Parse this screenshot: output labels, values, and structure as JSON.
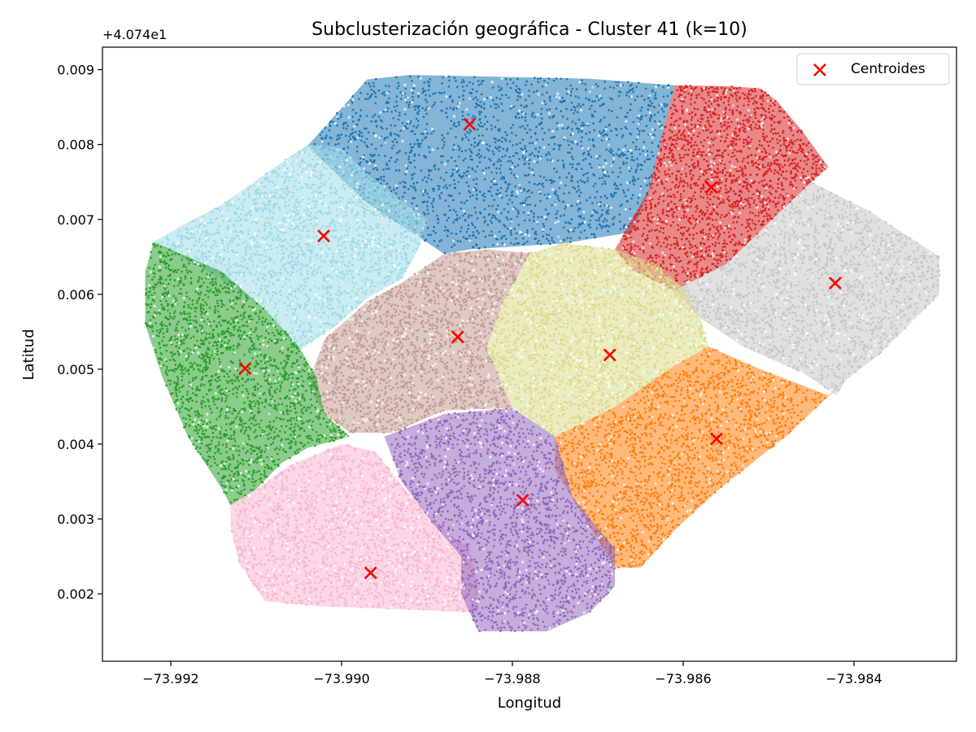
{
  "chart_data": {
    "type": "scatter",
    "title": "Subclusterización geográfica - Cluster 41 (k=10)",
    "xlabel": "Longitud",
    "ylabel": "Latitud",
    "y_offset_label": "+4.074e1",
    "y_offset": 40.74,
    "xlim": [
      -73.9928,
      -73.9828
    ],
    "ylim": [
      0.0011,
      0.0093
    ],
    "x_ticks": [
      -73.992,
      -73.99,
      -73.988,
      -73.986,
      -73.984
    ],
    "x_tick_labels": [
      "−73.992",
      "−73.990",
      "−73.988",
      "−73.986",
      "−73.984"
    ],
    "y_ticks": [
      0.002,
      0.003,
      0.004,
      0.005,
      0.006,
      0.007,
      0.008,
      0.009
    ],
    "y_tick_labels": [
      "0.002",
      "0.003",
      "0.004",
      "0.005",
      "0.006",
      "0.007",
      "0.008",
      "0.009"
    ],
    "grid": false,
    "legend": {
      "position": "top-right",
      "entries": [
        "Centroides"
      ]
    },
    "centroid_color": "#ff0000",
    "clusters": [
      {
        "color": "#1f77b4",
        "centroid": [
          -73.9885,
          0.00827
        ],
        "polygon": [
          [
            -73.9897,
            0.00887
          ],
          [
            -73.9892,
            0.00893
          ],
          [
            -73.9871,
            0.00888
          ],
          [
            -73.9861,
            0.00879
          ],
          [
            -73.9864,
            0.00738
          ],
          [
            -73.9866,
            0.00683
          ],
          [
            -73.9874,
            0.00668
          ],
          [
            -73.9885,
            0.0066
          ],
          [
            -73.9888,
            0.00654
          ],
          [
            -73.9897,
            0.00722
          ],
          [
            -73.9904,
            0.00798
          ]
        ]
      },
      {
        "color": "#d62728",
        "centroid": [
          -73.98567,
          0.00743
        ],
        "polygon": [
          [
            -73.9861,
            0.00879
          ],
          [
            -73.9855,
            0.00878
          ],
          [
            -73.9851,
            0.00875
          ],
          [
            -73.9849,
            0.00858
          ],
          [
            -73.9846,
            0.00817
          ],
          [
            -73.9843,
            0.0077
          ],
          [
            -73.9845,
            0.0075
          ],
          [
            -73.9855,
            0.0064
          ],
          [
            -73.9861,
            0.00605
          ],
          [
            -73.9866,
            0.00633
          ],
          [
            -73.9868,
            0.0066
          ],
          [
            -73.9864,
            0.0074
          ]
        ]
      },
      {
        "color": "#c7c7c7",
        "centroid": [
          -73.98422,
          0.00615
        ],
        "polygon": [
          [
            -73.9845,
            0.0075
          ],
          [
            -73.9838,
            0.0071
          ],
          [
            -73.983,
            0.0065
          ],
          [
            -73.983,
            0.006
          ],
          [
            -73.9837,
            0.0052
          ],
          [
            -73.9841,
            0.00485
          ],
          [
            -73.9842,
            0.00465
          ],
          [
            -73.9846,
            0.00495
          ],
          [
            -73.9853,
            0.0053
          ],
          [
            -73.9858,
            0.00568
          ],
          [
            -73.9861,
            0.00605
          ],
          [
            -73.9855,
            0.0064
          ]
        ]
      },
      {
        "color": "#ff7f0e",
        "centroid": [
          -73.98561,
          0.00407
        ],
        "polygon": [
          [
            -73.9857,
            0.0053
          ],
          [
            -73.9851,
            0.005
          ],
          [
            -73.9843,
            0.00465
          ],
          [
            -73.9841,
            0.00485
          ],
          [
            -73.9848,
            0.0041
          ],
          [
            -73.9856,
            0.00338
          ],
          [
            -73.9861,
            0.00285
          ],
          [
            -73.9865,
            0.00235
          ],
          [
            -73.9868,
            0.00235
          ],
          [
            -73.9872,
            0.0031
          ],
          [
            -73.9875,
            0.00365
          ],
          [
            -73.9875,
            0.0041
          ],
          [
            -73.9868,
            0.0045
          ],
          [
            -73.9861,
            0.00505
          ]
        ]
      },
      {
        "color": "#dbdb8d",
        "centroid": [
          -73.98686,
          0.00519
        ],
        "polygon": [
          [
            -73.9874,
            0.00668
          ],
          [
            -73.9868,
            0.0066
          ],
          [
            -73.9863,
            0.0064
          ],
          [
            -73.986,
            0.00608
          ],
          [
            -73.9858,
            0.00568
          ],
          [
            -73.9857,
            0.0053
          ],
          [
            -73.9861,
            0.00505
          ],
          [
            -73.9868,
            0.0045
          ],
          [
            -73.9875,
            0.0041
          ],
          [
            -73.988,
            0.00448
          ],
          [
            -73.9883,
            0.0053
          ],
          [
            -73.9881,
            0.0059
          ],
          [
            -73.9878,
            0.00655
          ]
        ]
      },
      {
        "color": "#c49c94",
        "centroid": [
          -73.98864,
          0.00543
        ],
        "polygon": [
          [
            -73.9888,
            0.00654
          ],
          [
            -73.9883,
            0.0066
          ],
          [
            -73.9878,
            0.00655
          ],
          [
            -73.9881,
            0.0059
          ],
          [
            -73.9883,
            0.0053
          ],
          [
            -73.988,
            0.00448
          ],
          [
            -73.9888,
            0.00445
          ],
          [
            -73.9894,
            0.00415
          ],
          [
            -73.9899,
            0.00415
          ],
          [
            -73.9902,
            0.0044
          ],
          [
            -73.9904,
            0.0048
          ],
          [
            -73.9902,
            0.0054
          ],
          [
            -73.9897,
            0.0059
          ],
          [
            -73.9893,
            0.00615
          ]
        ]
      },
      {
        "color": "#9edae5",
        "centroid": [
          -73.99021,
          0.00678
        ],
        "polygon": [
          [
            -73.9904,
            0.008
          ],
          [
            -73.99,
            0.00795
          ],
          [
            -73.9897,
            0.0076
          ],
          [
            -73.9893,
            0.00725
          ],
          [
            -73.989,
            0.007
          ],
          [
            -73.9891,
            0.0066
          ],
          [
            -73.9893,
            0.0062
          ],
          [
            -73.9897,
            0.00595
          ],
          [
            -73.9901,
            0.00555
          ],
          [
            -73.9905,
            0.00525
          ],
          [
            -73.9909,
            0.0058
          ],
          [
            -73.9914,
            0.0062
          ],
          [
            -73.9922,
            0.0067
          ],
          [
            -73.9919,
            0.0069
          ],
          [
            -73.9914,
            0.0072
          ],
          [
            -73.9909,
            0.0076
          ]
        ]
      },
      {
        "color": "#2ca02c",
        "centroid": [
          -73.99113,
          0.00501
        ],
        "polygon": [
          [
            -73.9922,
            0.0067
          ],
          [
            -73.9914,
            0.0063
          ],
          [
            -73.9909,
            0.0058
          ],
          [
            -73.9905,
            0.0053
          ],
          [
            -73.9903,
            0.0049
          ],
          [
            -73.9902,
            0.0044
          ],
          [
            -73.9899,
            0.0041
          ],
          [
            -73.9904,
            0.00395
          ],
          [
            -73.9907,
            0.00375
          ],
          [
            -73.991,
            0.0034
          ],
          [
            -73.9913,
            0.00318
          ],
          [
            -73.9914,
            0.0034
          ],
          [
            -73.9918,
            0.0041
          ],
          [
            -73.9921,
            0.0049
          ],
          [
            -73.9923,
            0.0056
          ],
          [
            -73.9923,
            0.0063
          ]
        ]
      },
      {
        "color": "#f7b6d2",
        "centroid": [
          -73.98966,
          0.00228
        ],
        "polygon": [
          [
            -73.9913,
            0.00318
          ],
          [
            -73.991,
            0.0034
          ],
          [
            -73.9906,
            0.00372
          ],
          [
            -73.99,
            0.004
          ],
          [
            -73.9896,
            0.0039
          ],
          [
            -73.9893,
            0.00345
          ],
          [
            -73.9889,
            0.00295
          ],
          [
            -73.9885,
            0.0026
          ],
          [
            -73.9884,
            0.0021
          ],
          [
            -73.9884,
            0.00175
          ],
          [
            -73.989,
            0.00178
          ],
          [
            -73.9902,
            0.00183
          ],
          [
            -73.9909,
            0.0019
          ],
          [
            -73.9912,
            0.0024
          ],
          [
            -73.9913,
            0.0029
          ]
        ]
      },
      {
        "color": "#9467bd",
        "centroid": [
          -73.98788,
          0.00325
        ],
        "polygon": [
          [
            -73.9895,
            0.0041
          ],
          [
            -73.9888,
            0.0044
          ],
          [
            -73.988,
            0.00448
          ],
          [
            -73.9875,
            0.0041
          ],
          [
            -73.9873,
            0.0033
          ],
          [
            -73.9868,
            0.0026
          ],
          [
            -73.9868,
            0.0021
          ],
          [
            -73.9871,
            0.00175
          ],
          [
            -73.9876,
            0.0015
          ],
          [
            -73.9884,
            0.0015
          ],
          [
            -73.9886,
            0.002
          ],
          [
            -73.9886,
            0.0025
          ],
          [
            -73.9889,
            0.0029
          ],
          [
            -73.9893,
            0.0035
          ]
        ]
      }
    ]
  }
}
